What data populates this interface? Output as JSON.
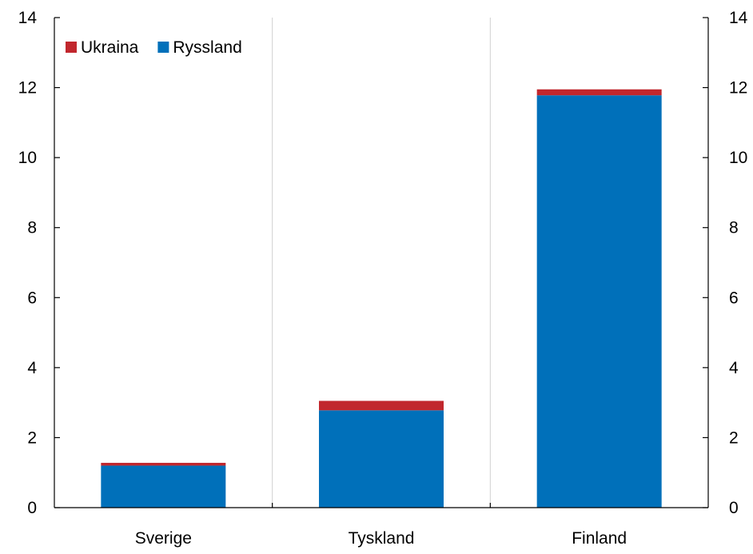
{
  "chart_data": {
    "type": "bar",
    "stacked": true,
    "categories": [
      "Sverige",
      "Tyskland",
      "Finland"
    ],
    "series": [
      {
        "name": "Ryssland",
        "color": "#0070BA",
        "values": [
          1.2,
          2.78,
          11.78
        ]
      },
      {
        "name": "Ukraina",
        "color": "#C1272D",
        "values": [
          0.08,
          0.27,
          0.17
        ]
      }
    ],
    "legend_order": [
      "Ukraina",
      "Ryssland"
    ],
    "legend_position": "top-left",
    "ylim": [
      0,
      14
    ],
    "yticks": [
      0,
      2,
      4,
      6,
      8,
      10,
      12,
      14
    ],
    "y_axes": "left and right",
    "grid": "vertical gridlines between categories",
    "title": "",
    "xlabel": "",
    "ylabel": ""
  }
}
